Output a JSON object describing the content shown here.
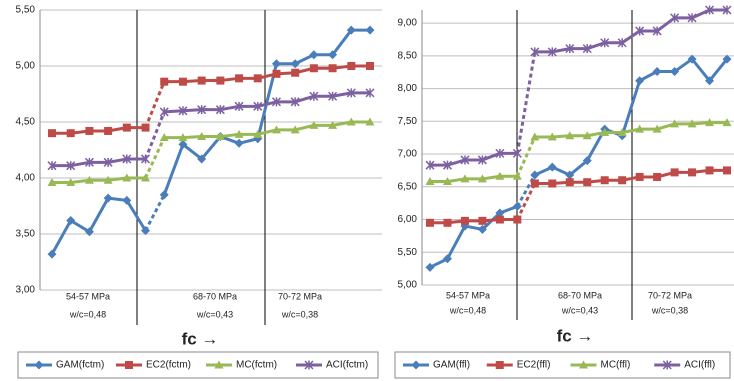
{
  "chart_data": [
    {
      "type": "line",
      "categories": [
        null,
        null,
        null,
        null,
        null,
        null,
        null,
        null,
        null,
        null,
        null,
        null,
        null,
        null,
        null,
        null,
        null,
        null
      ],
      "ylim": [
        3,
        5.5
      ],
      "yticks": [
        {
          "value": 3,
          "label": "3,00"
        },
        {
          "value": 3.5,
          "label": "3,50"
        },
        {
          "value": 4,
          "label": "4,00"
        },
        {
          "value": 4.5,
          "label": "4,50"
        },
        {
          "value": 5,
          "label": "5,00"
        },
        {
          "value": 5.5,
          "label": "5,50"
        }
      ],
      "grid": true,
      "xlabel": "fc →",
      "groups": [
        {
          "label": "54-57 MPa",
          "note": "w/c=0,48"
        },
        {
          "label": "68-70 MPa",
          "note": "w/c=0,43"
        },
        {
          "label": "70-72 MPa",
          "note": "w/c=0,38"
        }
      ],
      "legend": "bottom",
      "series": [
        {
          "name": "GAM(fctm)",
          "color": "#4a7ebb",
          "values": [
            3.32,
            3.62,
            3.52,
            3.82,
            3.8,
            3.53,
            3.85,
            4.3,
            4.17,
            4.37,
            4.31,
            4.35,
            5.02,
            5.02,
            5.1,
            5.1,
            5.32,
            5.32
          ]
        },
        {
          "name": "EC2(fctm)",
          "color": "#be4b48",
          "values": [
            4.4,
            4.4,
            4.42,
            4.42,
            4.45,
            4.45,
            4.86,
            4.86,
            4.87,
            4.87,
            4.89,
            4.89,
            4.93,
            4.94,
            4.98,
            4.98,
            5.0,
            5.0
          ]
        },
        {
          "name": "MC(fctm)",
          "color": "#98b954",
          "values": [
            3.96,
            3.96,
            3.98,
            3.98,
            4.0,
            4.0,
            4.36,
            4.36,
            4.37,
            4.37,
            4.39,
            4.39,
            4.43,
            4.43,
            4.47,
            4.47,
            4.5,
            4.5
          ]
        },
        {
          "name": "ACI(fctm)",
          "color": "#7d60a0",
          "values": [
            4.11,
            4.11,
            4.14,
            4.14,
            4.17,
            4.17,
            4.59,
            4.6,
            4.61,
            4.61,
            4.64,
            4.64,
            4.68,
            4.68,
            4.73,
            4.73,
            4.76,
            4.76
          ]
        }
      ]
    },
    {
      "type": "line",
      "categories": [
        null,
        null,
        null,
        null,
        null,
        null,
        null,
        null,
        null,
        null,
        null,
        null,
        null,
        null,
        null,
        null,
        null,
        null
      ],
      "ylim": [
        5,
        9.2
      ],
      "yticks": [
        {
          "value": 5,
          "label": "5,00"
        },
        {
          "value": 5.5,
          "label": "5,50"
        },
        {
          "value": 6,
          "label": "6,00"
        },
        {
          "value": 6.5,
          "label": "6,50"
        },
        {
          "value": 7,
          "label": "7,00"
        },
        {
          "value": 7.5,
          "label": "7,50"
        },
        {
          "value": 8,
          "label": "8,00"
        },
        {
          "value": 8.5,
          "label": "8,50"
        },
        {
          "value": 9,
          "label": "9,00"
        }
      ],
      "grid": true,
      "xlabel": "fc →",
      "groups": [
        {
          "label": "54-57 MPa",
          "note": "w/c=0,48"
        },
        {
          "label": "68-70 MPa",
          "note": "w/c=0,43"
        },
        {
          "label": "70-72 MPa",
          "note": "w/c=0,38"
        }
      ],
      "legend": "bottom",
      "series": [
        {
          "name": "GAM(ffl)",
          "color": "#4a7ebb",
          "values": [
            5.27,
            5.4,
            5.9,
            5.85,
            6.1,
            6.2,
            6.68,
            6.8,
            6.68,
            6.9,
            7.38,
            7.28,
            8.12,
            8.26,
            8.26,
            8.45,
            8.12,
            8.45
          ]
        },
        {
          "name": "EC2(ffl)",
          "color": "#be4b48",
          "values": [
            5.95,
            5.95,
            5.98,
            5.98,
            6.0,
            6.0,
            6.55,
            6.55,
            6.57,
            6.57,
            6.6,
            6.6,
            6.65,
            6.65,
            6.72,
            6.72,
            6.75,
            6.75
          ]
        },
        {
          "name": "MC(ffl)",
          "color": "#98b954",
          "values": [
            6.58,
            6.58,
            6.62,
            6.62,
            6.66,
            6.66,
            7.26,
            7.26,
            7.28,
            7.28,
            7.33,
            7.33,
            7.38,
            7.38,
            7.46,
            7.46,
            7.48,
            7.48
          ]
        },
        {
          "name": "ACI(ffl)",
          "color": "#7d60a0",
          "values": [
            6.83,
            6.83,
            6.91,
            6.91,
            7.01,
            7.01,
            8.56,
            8.56,
            8.61,
            8.61,
            8.7,
            8.7,
            8.88,
            8.88,
            9.08,
            9.08,
            9.2,
            9.2
          ]
        }
      ]
    }
  ]
}
